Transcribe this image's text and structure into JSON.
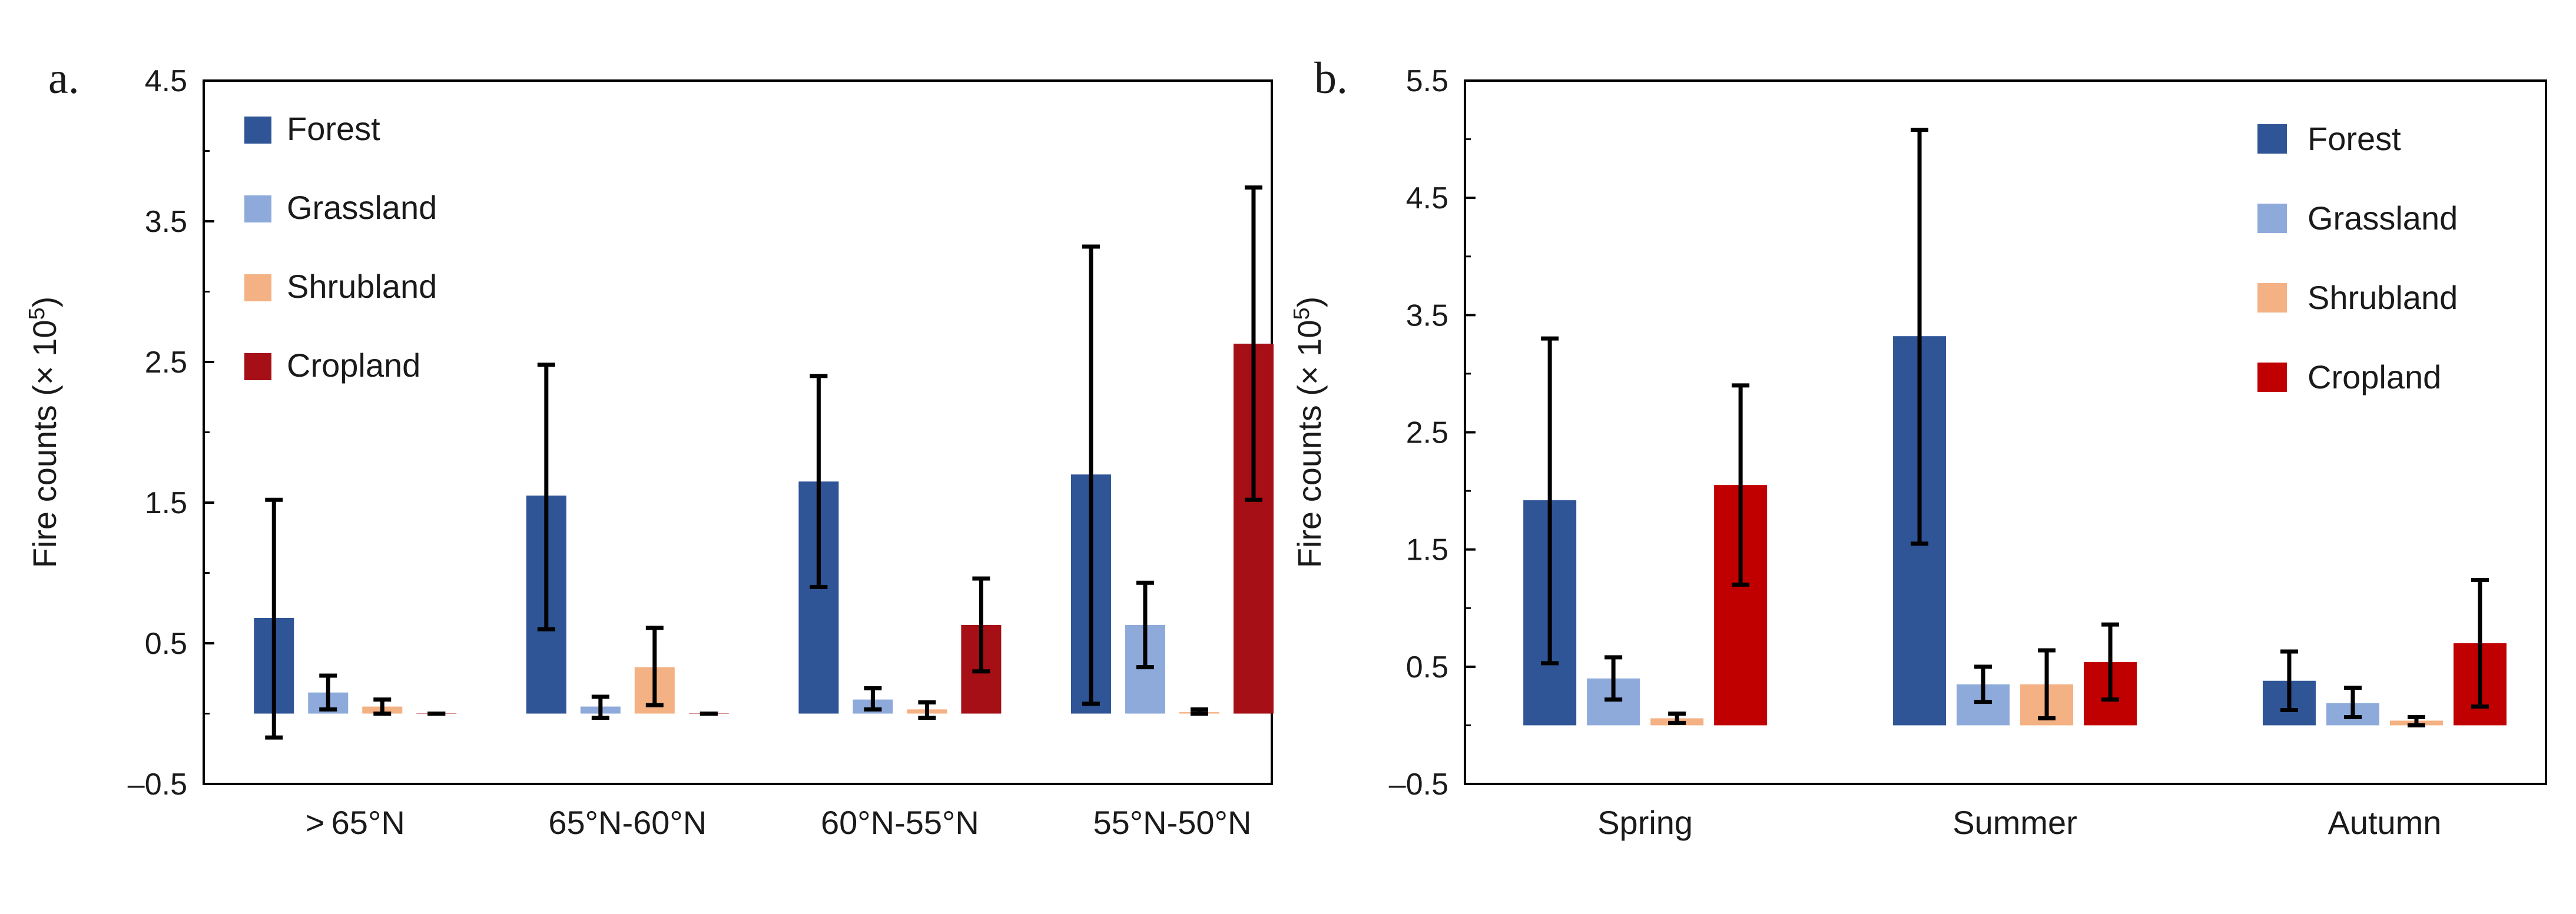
{
  "chart_data": [
    {
      "panel_label": "a.",
      "type": "bar",
      "xlabel": "",
      "ylabel": "Fire counts (× 10",
      "ylabel_sup": "5",
      "ylabel_close": ")",
      "ylim": [
        -0.5,
        4.5
      ],
      "yticks": [
        -0.5,
        0.5,
        1.5,
        2.5,
        3.5,
        4.5
      ],
      "ytick_labels": [
        "–0.5",
        "0.5",
        "1.5",
        "2.5",
        "3.5",
        "4.5"
      ],
      "legend_position": "top-left",
      "categories": [
        "> 65°N",
        "65°N-60°N",
        "60°N-55°N",
        "55°N-50°N"
      ],
      "series": [
        {
          "name": "Forest",
          "color": "#2f5597",
          "values": [
            0.68,
            1.55,
            1.65,
            1.7
          ],
          "err_low": [
            -0.17,
            0.6,
            0.9,
            0.07
          ],
          "err_high": [
            1.52,
            2.48,
            2.4,
            3.32
          ]
        },
        {
          "name": "Grassland",
          "color": "#8eaadb",
          "values": [
            0.15,
            0.05,
            0.1,
            0.63
          ],
          "err_low": [
            0.03,
            -0.03,
            0.03,
            0.33
          ],
          "err_high": [
            0.27,
            0.12,
            0.18,
            0.93
          ]
        },
        {
          "name": "Shrubland",
          "color": "#f4b183",
          "values": [
            0.05,
            0.33,
            0.03,
            0.01
          ],
          "err_low": [
            0.0,
            0.06,
            -0.03,
            0.0
          ],
          "err_high": [
            0.1,
            0.61,
            0.08,
            0.03
          ]
        },
        {
          "name": "Cropland",
          "color": "#a50f15",
          "values": [
            0.0,
            0.0,
            0.63,
            2.63
          ],
          "err_low": [
            0.0,
            0.0,
            0.3,
            1.52
          ],
          "err_high": [
            0.0,
            0.0,
            0.96,
            3.74
          ]
        }
      ]
    },
    {
      "panel_label": "b.",
      "type": "bar",
      "xlabel": "",
      "ylabel": "Fire counts (× 10",
      "ylabel_sup": "5",
      "ylabel_close": ")",
      "ylim": [
        -0.5,
        5.5
      ],
      "yticks": [
        -0.5,
        0.5,
        1.5,
        2.5,
        3.5,
        4.5,
        5.5
      ],
      "ytick_labels": [
        "–0.5",
        "0.5",
        "1.5",
        "2.5",
        "3.5",
        "4.5",
        "5.5"
      ],
      "legend_position": "top-right",
      "categories": [
        "Spring",
        "Summer",
        "Autumn"
      ],
      "series": [
        {
          "name": "Forest",
          "color": "#2f5597",
          "values": [
            1.92,
            3.32,
            0.38
          ],
          "err_low": [
            0.53,
            1.55,
            0.13
          ],
          "err_high": [
            3.3,
            5.08,
            0.63
          ]
        },
        {
          "name": "Grassland",
          "color": "#8eaadb",
          "values": [
            0.4,
            0.35,
            0.19
          ],
          "err_low": [
            0.22,
            0.2,
            0.07
          ],
          "err_high": [
            0.58,
            0.5,
            0.32
          ]
        },
        {
          "name": "Shrubland",
          "color": "#f4b183",
          "values": [
            0.06,
            0.35,
            0.04
          ],
          "err_low": [
            0.02,
            0.06,
            0.0
          ],
          "err_high": [
            0.1,
            0.64,
            0.07
          ]
        },
        {
          "name": "Cropland",
          "color": "#c00000",
          "values": [
            2.05,
            0.54,
            0.7
          ],
          "err_low": [
            1.2,
            0.22,
            0.16
          ],
          "err_high": [
            2.9,
            0.86,
            1.24
          ]
        }
      ]
    }
  ]
}
